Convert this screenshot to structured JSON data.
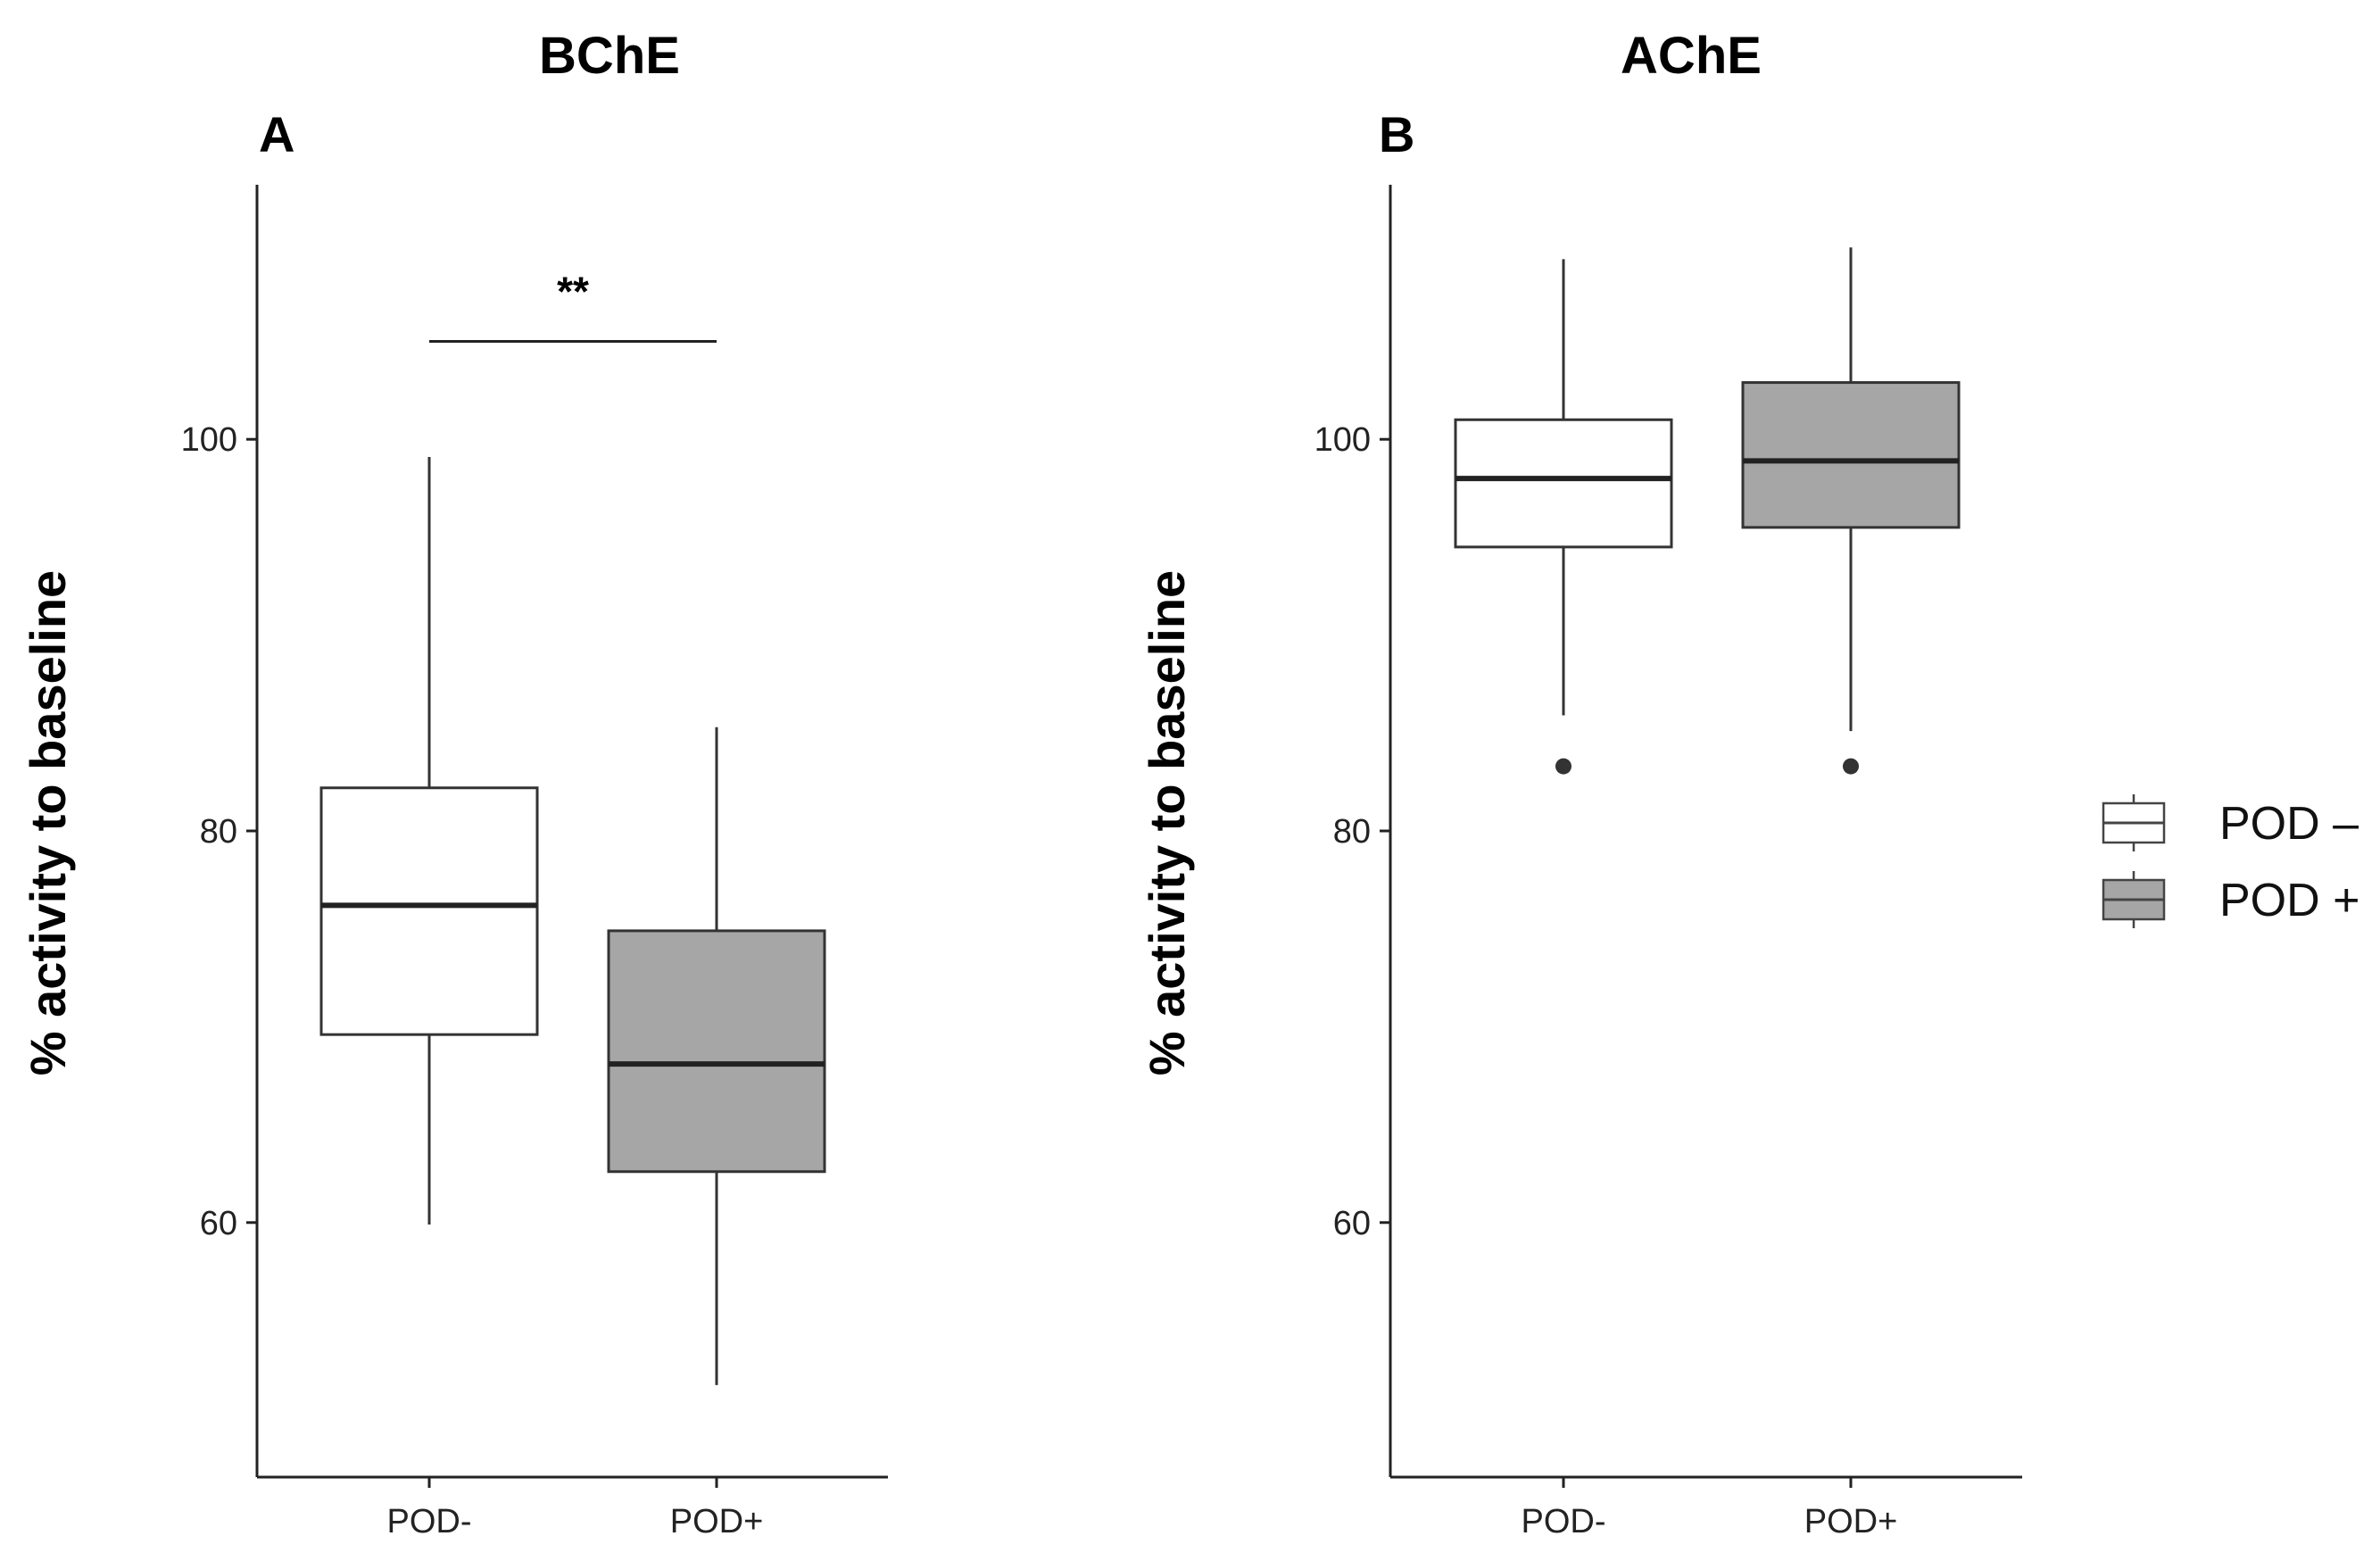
{
  "chart_data": [
    {
      "type": "boxplot",
      "panel": "A",
      "title": "BChE",
      "xlabel": "",
      "ylabel": "% activity to baseline",
      "ylim": [
        47,
        113
      ],
      "yticks": [
        60,
        80,
        100
      ],
      "categories": [
        "POD-",
        "POD+"
      ],
      "boxes": [
        {
          "name": "POD-",
          "min": 59.9,
          "q1": 69.6,
          "median": 76.2,
          "q3": 82.2,
          "max": 99.1,
          "outliers": [],
          "fill": "#ffffff"
        },
        {
          "name": "POD+",
          "min": 51.7,
          "q1": 62.6,
          "median": 68.1,
          "q3": 74.9,
          "max": 85.3,
          "outliers": [],
          "fill": "#a6a6a6"
        }
      ],
      "significance": {
        "text": "**",
        "level": 105,
        "from": "POD-",
        "to": "POD+"
      }
    },
    {
      "type": "boxplot",
      "panel": "B",
      "title": "AChE",
      "xlabel": "",
      "ylabel": "% activity to baseline",
      "ylim": [
        47,
        113
      ],
      "yticks": [
        60,
        80,
        100
      ],
      "categories": [
        "POD-",
        "POD+"
      ],
      "boxes": [
        {
          "name": "POD-",
          "min": 85.9,
          "q1": 94.5,
          "median": 98.0,
          "q3": 101.0,
          "max": 109.2,
          "outliers": [
            83.3
          ],
          "fill": "#ffffff"
        },
        {
          "name": "POD+",
          "min": 85.1,
          "q1": 95.5,
          "median": 98.9,
          "q3": 102.9,
          "max": 109.8,
          "outliers": [
            83.3
          ],
          "fill": "#a6a6a6"
        }
      ],
      "significance": null
    }
  ],
  "legend": {
    "items": [
      {
        "label": "POD –",
        "fill": "#ffffff"
      },
      {
        "label": "POD +",
        "fill": "#a6a6a6"
      }
    ]
  }
}
